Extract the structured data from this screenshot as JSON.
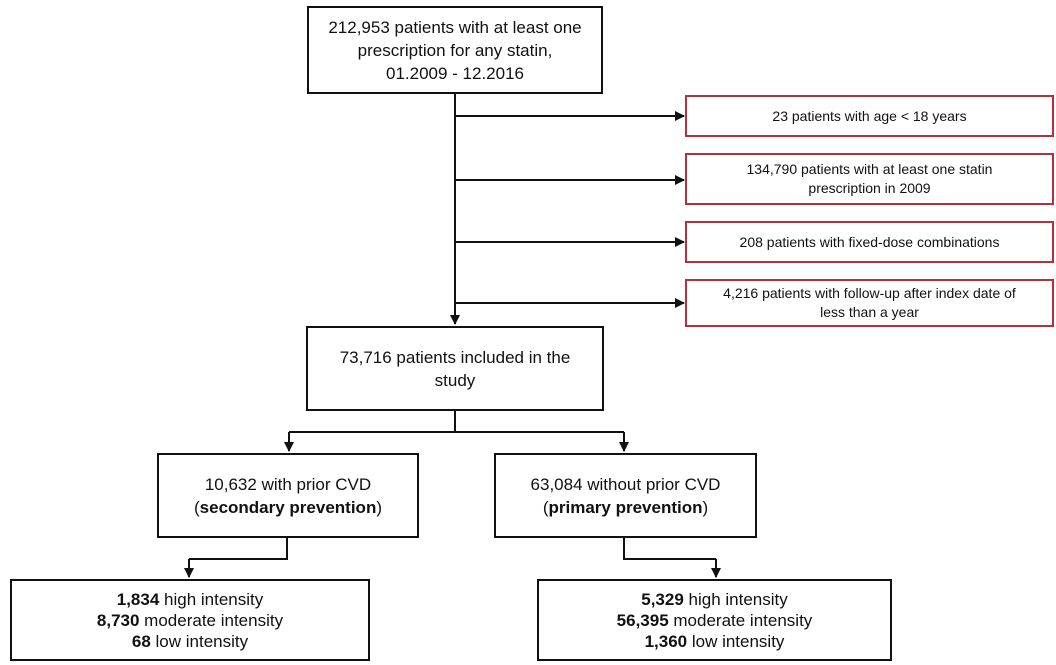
{
  "flowchart": {
    "start": {
      "lines": [
        "212,953 patients with at least one",
        "prescription for any statin,",
        "01.2009 - 12.2016"
      ]
    },
    "exclusions": [
      {
        "lines": [
          "23 patients with age < 18 years"
        ]
      },
      {
        "lines": [
          "134,790 patients with at least one statin",
          "prescription in 2009"
        ]
      },
      {
        "lines": [
          "208 patients with fixed-dose combinations"
        ]
      },
      {
        "lines": [
          "4,216 patients with follow-up after index date of",
          "less than a year"
        ]
      }
    ],
    "included": {
      "lines": [
        "73,716 patients included in the",
        "study"
      ]
    },
    "secondary": {
      "line1": "10,632 with prior CVD",
      "open": "(",
      "bold": "secondary prevention",
      "close": ")"
    },
    "primary": {
      "line1": "63,084 without prior CVD",
      "open": "(",
      "bold": "primary prevention",
      "close": ")"
    },
    "secondary_intensity": [
      {
        "count": "1,834",
        "label": " high intensity"
      },
      {
        "count": "8,730",
        "label": " moderate intensity"
      },
      {
        "count": "68",
        "label": " low intensity"
      }
    ],
    "primary_intensity": [
      {
        "count": "5,329",
        "label": " high intensity"
      },
      {
        "count": "56,395",
        "label": " moderate intensity"
      },
      {
        "count": "1,360",
        "label": " low intensity"
      }
    ]
  },
  "colors": {
    "line": "#111111",
    "exclusion_border": "#b5303a"
  }
}
